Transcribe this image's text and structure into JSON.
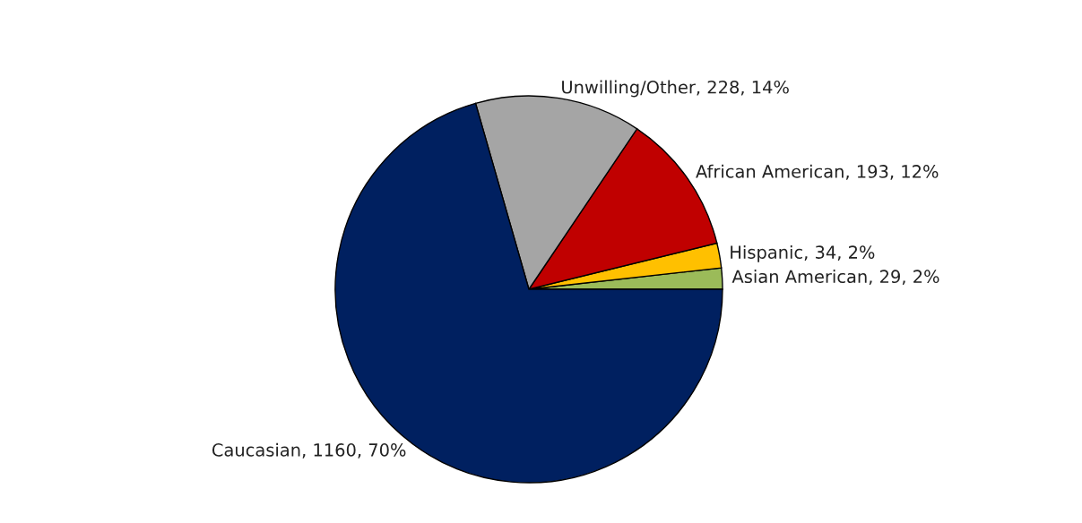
{
  "chart_data": {
    "type": "pie",
    "categories": [
      "Asian American",
      "Hispanic",
      "African American",
      "Unwilling/Other",
      "Caucasian"
    ],
    "values": [
      29,
      34,
      193,
      228,
      1160
    ],
    "value_labels": [
      "29, 2%",
      "34, 2%",
      "193, 12%",
      "228, 14%",
      "1160, 70%"
    ],
    "colors": [
      "#9bbb59",
      "#ffc000",
      "#c00000",
      "#a5a5a5",
      "#002060"
    ]
  }
}
